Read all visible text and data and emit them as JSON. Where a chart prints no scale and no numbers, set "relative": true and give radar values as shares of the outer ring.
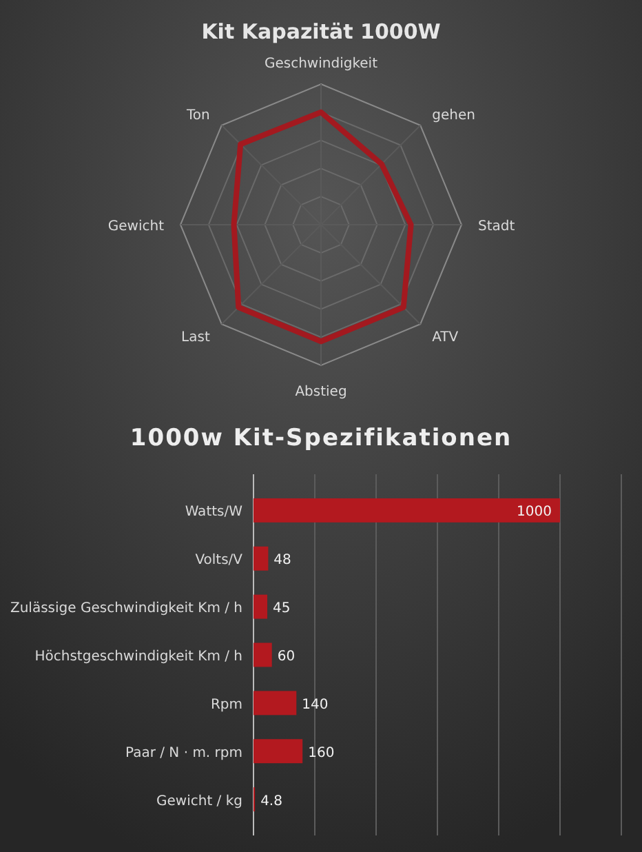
{
  "chart_data": [
    {
      "type": "radar",
      "title": "Kit Kapazität 1000W",
      "categories": [
        "Geschwindigkeit",
        "gehen",
        "Stadt",
        "ATV",
        "Abstieg",
        "Last",
        "Gewicht",
        "Ton"
      ],
      "relative": true,
      "grid": true,
      "series": [
        {
          "color": "#a3191f",
          "values": [
            0.8,
            0.61,
            0.64,
            0.83,
            0.83,
            0.83,
            0.62,
            0.81
          ]
        }
      ]
    },
    {
      "type": "bar",
      "orientation": "horizontal",
      "title": "1000w Kit-Spezifikationen",
      "categories": [
        "Watts/W",
        "Volts/V",
        "Zulässige Geschwindigkeit Km / h",
        "Höchstgeschwindigkeit Km / h",
        "Rpm",
        "Paar / N · m. rpm",
        "Gewicht / kg"
      ],
      "series": [
        {
          "color": "#b3191f",
          "values": [
            1000,
            48,
            45,
            60,
            140,
            160,
            4.8
          ]
        }
      ],
      "xlim": [
        0,
        1200
      ],
      "xticks": [
        {
          "value": 0,
          "label": null
        },
        {
          "value": 200,
          "label": null
        },
        {
          "value": 400,
          "label": null
        },
        {
          "value": 600,
          "label": null
        },
        {
          "value": 800,
          "label": null
        },
        {
          "value": 1000,
          "label": null
        },
        {
          "value": 1200,
          "label": null
        }
      ],
      "grid": "x",
      "tick_labels": "y",
      "data_labels": true
    }
  ]
}
